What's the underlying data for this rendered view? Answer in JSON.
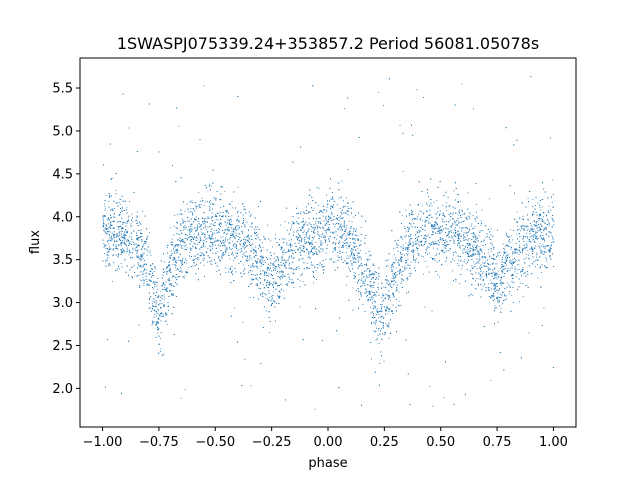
{
  "chart_data": {
    "type": "scatter",
    "title": "1SWASPJ075339.24+353857.2 Period 56081.05078s",
    "xlabel": "phase",
    "ylabel": "flux",
    "xlim": [
      -1.1,
      1.1
    ],
    "ylim": [
      1.55,
      5.85
    ],
    "x_ticks": [
      -1.0,
      -0.75,
      -0.5,
      -0.25,
      0.0,
      0.25,
      0.5,
      0.75,
      1.0
    ],
    "x_tick_labels": [
      "−1.00",
      "−0.75",
      "−0.50",
      "−0.25",
      "0.00",
      "0.25",
      "0.50",
      "0.75",
      "1.00"
    ],
    "y_ticks": [
      2.0,
      2.5,
      3.0,
      3.5,
      4.0,
      4.5,
      5.0,
      5.5
    ],
    "y_tick_labels": [
      "2.0",
      "2.5",
      "3.0",
      "3.5",
      "4.0",
      "4.5",
      "5.0",
      "5.5"
    ],
    "grid": false,
    "marker_color": "#1f77b4",
    "series": [
      {
        "phase": [
          -1.0,
          -0.9,
          -0.85,
          -0.8,
          -0.77,
          -0.75,
          -0.73,
          -0.7,
          -0.65,
          -0.6,
          -0.55,
          -0.5,
          -0.45,
          -0.4,
          -0.35,
          -0.3,
          -0.27,
          -0.25,
          -0.23,
          -0.2,
          -0.15,
          -0.1,
          -0.05,
          0.0,
          0.05,
          0.1,
          0.15,
          0.2,
          0.23,
          0.25,
          0.27,
          0.3,
          0.35,
          0.4,
          0.45,
          0.5,
          0.55,
          0.6,
          0.65,
          0.7,
          0.73,
          0.75,
          0.77,
          0.8,
          0.85,
          0.9,
          0.95,
          1.0
        ],
        "median_flux": [
          3.82,
          3.8,
          3.7,
          3.4,
          3.05,
          2.85,
          3.05,
          3.4,
          3.7,
          3.8,
          3.83,
          3.82,
          3.8,
          3.75,
          3.65,
          3.45,
          3.3,
          3.25,
          3.3,
          3.45,
          3.65,
          3.75,
          3.8,
          3.82,
          3.8,
          3.7,
          3.4,
          3.05,
          2.85,
          3.05,
          3.05,
          3.4,
          3.7,
          3.8,
          3.83,
          3.82,
          3.8,
          3.75,
          3.65,
          3.45,
          3.3,
          3.25,
          3.3,
          3.45,
          3.65,
          3.75,
          3.8,
          3.82
        ]
      }
    ]
  }
}
